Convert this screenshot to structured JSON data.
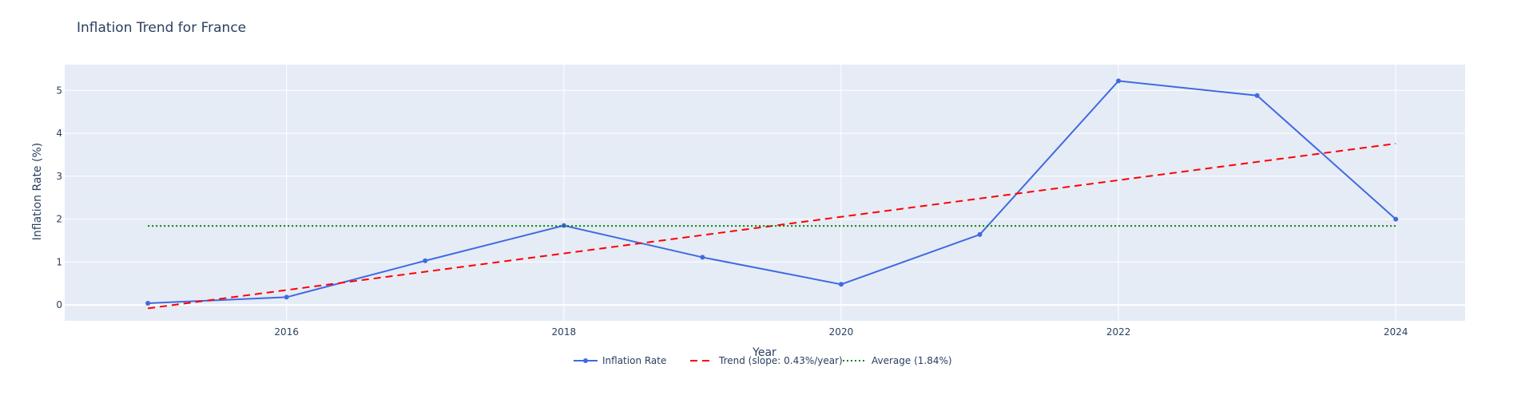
{
  "chart_data": {
    "type": "line",
    "title": "Inflation Trend for France",
    "xlabel": "Year",
    "ylabel": "Inflation Rate (%)",
    "xlim": [
      2014.4,
      2024.5
    ],
    "ylim": [
      -0.37,
      5.6
    ],
    "x_ticks": [
      2016,
      2018,
      2020,
      2022,
      2024
    ],
    "y_ticks": [
      0,
      1,
      2,
      3,
      4,
      5
    ],
    "grid": true,
    "legend_position": "bottom-center",
    "series": [
      {
        "name": "Inflation Rate",
        "style": "lines+markers",
        "color": "#4169e1",
        "x": [
          2015,
          2016,
          2017,
          2018,
          2019,
          2020,
          2021,
          2022,
          2023,
          2024
        ],
        "y": [
          0.04,
          0.18,
          1.03,
          1.85,
          1.11,
          0.48,
          1.64,
          5.22,
          4.88,
          2.0
        ]
      },
      {
        "name": "Trend (slope: 0.43%/year)",
        "style": "dash",
        "color": "#ff0000",
        "x": [
          2015,
          2024
        ],
        "y": [
          -0.08,
          3.76
        ]
      },
      {
        "name": "Average (1.84%)",
        "style": "dot",
        "color": "#008000",
        "x": [
          2015,
          2024
        ],
        "y": [
          1.84,
          1.84
        ]
      }
    ]
  }
}
